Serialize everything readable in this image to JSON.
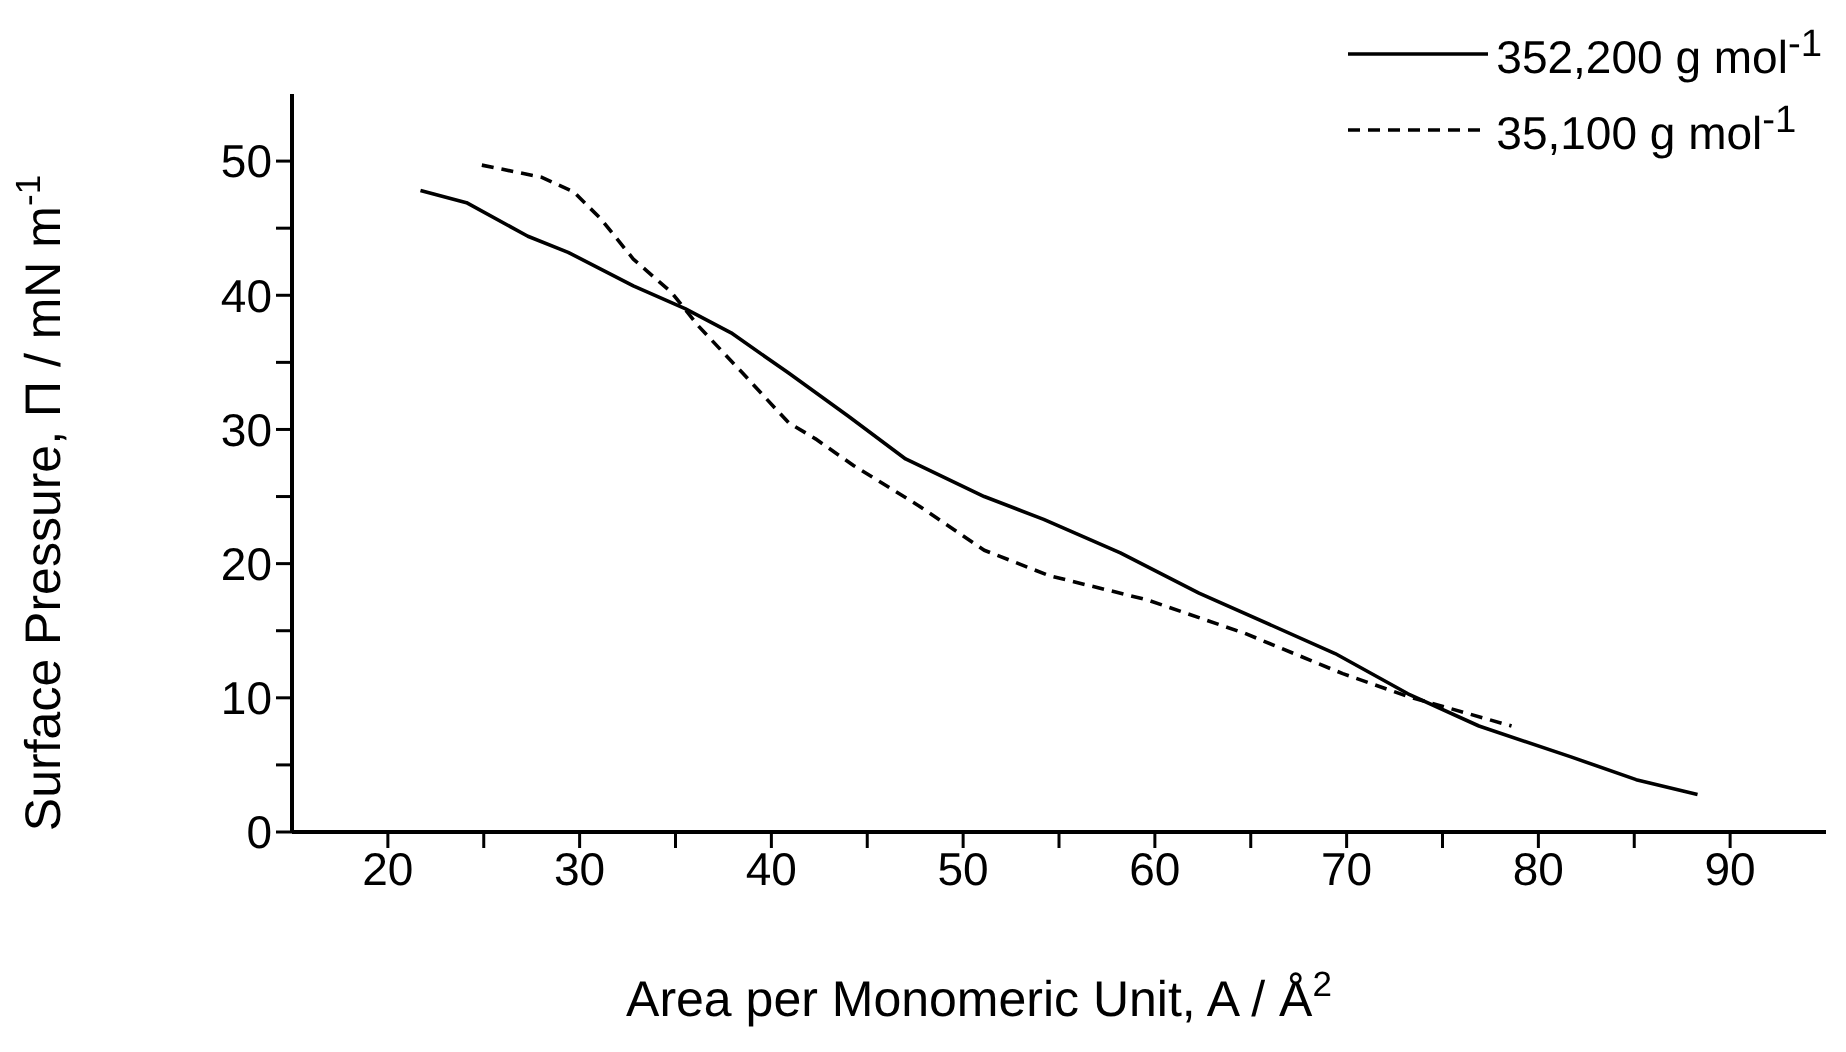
{
  "chart_data": {
    "type": "line",
    "xlabel": "Area per Monomeric Unit, A / Å$^{2}$",
    "ylabel": "Surface Pressure, Π / mN m$^{-1}$",
    "xlim": [
      15,
      95
    ],
    "ylim": [
      0,
      55
    ],
    "xticks": [
      20,
      {
        "value": 25,
        "label": null
      },
      30,
      {
        "value": 35,
        "label": null
      },
      40,
      {
        "value": 45,
        "label": null
      },
      50,
      {
        "value": 55,
        "label": null
      },
      60,
      {
        "value": 65,
        "label": null
      },
      70,
      {
        "value": 75,
        "label": null
      },
      80,
      {
        "value": 85,
        "label": null
      },
      90
    ],
    "yticks": [
      0,
      {
        "value": 5,
        "label": null
      },
      10,
      {
        "value": 15,
        "label": null
      },
      20,
      {
        "value": 25,
        "label": null
      },
      30,
      {
        "value": 35,
        "label": null
      },
      40,
      {
        "value": 45,
        "label": null
      },
      50
    ],
    "legend": "top right",
    "grid": false,
    "marker": "none",
    "series": [
      {
        "name": "352,200 g mol$^{-1}$",
        "color": "#000000",
        "line_style": "solid",
        "x": [
          21.7,
          24.1,
          27.3,
          29.4,
          32.8,
          35.5,
          37.9,
          40.9,
          44.0,
          47.0,
          51.1,
          54.2,
          58.2,
          62.3,
          69.4,
          73.2,
          76.9,
          81.7,
          85.1,
          88.3
        ],
        "values": [
          47.8,
          46.9,
          44.4,
          43.2,
          40.7,
          39.0,
          37.2,
          34.2,
          31.0,
          27.8,
          25.0,
          23.3,
          20.8,
          17.8,
          13.3,
          10.3,
          7.9,
          5.6,
          3.9,
          2.8
        ]
      },
      {
        "name": "35,100 g mol$^{-1}$",
        "color": "#000000",
        "line_style": "dashed",
        "x": [
          24.9,
          28.0,
          29.7,
          31.1,
          32.8,
          34.8,
          36.2,
          38.5,
          40.9,
          42.3,
          44.3,
          47.7,
          51.1,
          54.5,
          59.6,
          64.7,
          69.8,
          73.2,
          78.6
        ],
        "values": [
          49.7,
          48.8,
          47.7,
          45.7,
          42.7,
          40.2,
          37.7,
          34.2,
          30.5,
          29.3,
          27.3,
          24.3,
          21.0,
          19.1,
          17.3,
          14.8,
          11.8,
          10.1,
          7.9
        ]
      }
    ]
  }
}
